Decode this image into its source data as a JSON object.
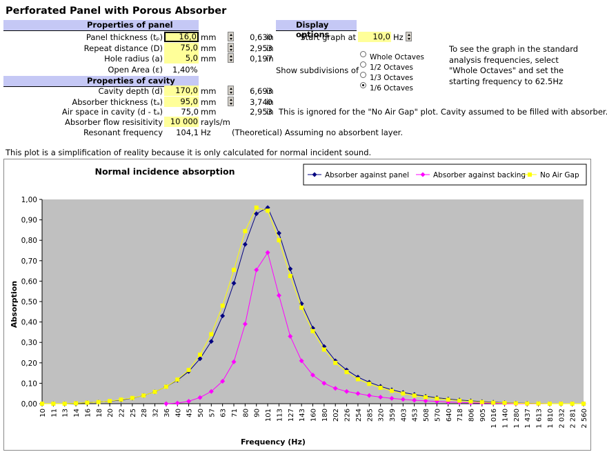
{
  "title": "Perforated Panel with Porous Absorber",
  "panel": {
    "header": "Properties of panel",
    "rows": [
      {
        "label": "Panel thickness (tₚ)",
        "input": "16,0",
        "unit": "mm",
        "converted": "0,630",
        "conv_unit": "in",
        "selected": true
      },
      {
        "label": "Repeat distance (D)",
        "input": "75,0",
        "unit": "mm",
        "converted": "2,953",
        "conv_unit": "in"
      },
      {
        "label": "Hole radius (a)",
        "input": "5,0",
        "unit": "mm",
        "converted": "0,197",
        "conv_unit": "in"
      }
    ],
    "open_area": {
      "label": "Open Area (ε)",
      "value": "1,40%"
    }
  },
  "cavity": {
    "header": "Properties of cavity",
    "rows": [
      {
        "label": "Cavity depth (d)",
        "input": "170,0",
        "unit": "mm",
        "converted": "6,693",
        "conv_unit": "in"
      },
      {
        "label": "Absorber thickness (tₐ)",
        "input": "95,0",
        "unit": "mm",
        "converted": "3,740",
        "conv_unit": "in"
      }
    ],
    "air_space": {
      "label": "Air space in cavity (d - tₐ)",
      "value": "75,0",
      "unit": "mm",
      "converted": "2,953",
      "conv_unit": "in",
      "note": "This is ignored for the \"No Air Gap\" plot.  Cavity assumed to be filled with absorber."
    },
    "flow": {
      "label": "Absorber flow resisitivity",
      "input": "10 000",
      "unit": "rayls/m"
    },
    "resonant": {
      "label": "Resonant frequency",
      "value": "104,1",
      "unit": "Hz",
      "note": "(Theoretical) Assuming no absorbent layer."
    }
  },
  "display": {
    "header": "Display options",
    "start_label": "Start graph at",
    "start_value": "10,0",
    "start_unit": "Hz",
    "subdiv_label": "Show subdivisions of",
    "options": [
      "Whole Octaves",
      "1/2 Octaves",
      "1/3 Octaves",
      "1/6 Octaves"
    ],
    "selected_option": 3,
    "hint": [
      "To see the graph in the standard",
      "analysis frequencies, select",
      "\"Whole Octaves\" and set the",
      "starting frequency to 62.5Hz"
    ]
  },
  "note": "This plot is a simplification of reality because it is only calculated for normal incident sound.",
  "chart_data": {
    "type": "line",
    "title": "Normal incidence absorption",
    "xlabel": "Frequency (Hz)",
    "ylabel": "Absorption",
    "ylim": [
      0,
      1
    ],
    "yticks": [
      "0,00",
      "0,10",
      "0,20",
      "0,30",
      "0,40",
      "0,50",
      "0,60",
      "0,70",
      "0,80",
      "0,90",
      "1,00"
    ],
    "categories": [
      "10",
      "11",
      "13",
      "14",
      "16",
      "18",
      "20",
      "22",
      "25",
      "28",
      "32",
      "36",
      "40",
      "45",
      "50",
      "57",
      "63",
      "71",
      "80",
      "90",
      "101",
      "113",
      "127",
      "143",
      "160",
      "180",
      "202",
      "226",
      "254",
      "285",
      "320",
      "359",
      "403",
      "453",
      "508",
      "570",
      "640",
      "718",
      "806",
      "905",
      "1 016",
      "1 140",
      "1 280",
      "1 437",
      "1 613",
      "1 810",
      "2 032",
      "2 281",
      "2 560"
    ],
    "legend_position": "top-right",
    "plot_bg": "#c0c0c0",
    "series": [
      {
        "name": "Absorber against panel",
        "color": "#000080",
        "marker": "diamond",
        "values": [
          0,
          0,
          0,
          0.002,
          0.005,
          0.008,
          0.012,
          0.018,
          0.027,
          0.04,
          0.058,
          0.083,
          0.115,
          0.158,
          0.22,
          0.305,
          0.43,
          0.59,
          0.78,
          0.93,
          0.96,
          0.835,
          0.66,
          0.49,
          0.37,
          0.28,
          0.21,
          0.165,
          0.13,
          0.105,
          0.085,
          0.068,
          0.055,
          0.045,
          0.036,
          0.029,
          0.023,
          0.018,
          0.014,
          0.01,
          0.007,
          0.005,
          0.003,
          0.002,
          0.001,
          0,
          0,
          0,
          0
        ]
      },
      {
        "name": "Absorber against backing",
        "color": "#ff00ff",
        "marker": "diamond",
        "values": [
          null,
          null,
          null,
          null,
          null,
          null,
          null,
          null,
          null,
          null,
          null,
          0,
          0.003,
          0.012,
          0.03,
          0.06,
          0.11,
          0.205,
          0.39,
          0.655,
          0.74,
          0.53,
          0.33,
          0.21,
          0.14,
          0.1,
          0.075,
          0.06,
          0.05,
          0.04,
          0.032,
          0.026,
          0.021,
          0.017,
          0.014,
          0.011,
          0.008,
          0.006,
          0.004,
          0.003,
          0.002,
          0.001,
          0,
          0,
          0,
          0,
          0,
          0,
          0
        ]
      },
      {
        "name": "No Air Gap",
        "color": "#ffff00",
        "marker": "square",
        "values": [
          0,
          0,
          0,
          0.002,
          0.005,
          0.008,
          0.013,
          0.02,
          0.028,
          0.04,
          0.058,
          0.083,
          0.118,
          0.165,
          0.24,
          0.34,
          0.48,
          0.655,
          0.845,
          0.96,
          0.945,
          0.8,
          0.625,
          0.47,
          0.355,
          0.265,
          0.2,
          0.155,
          0.12,
          0.097,
          0.078,
          0.063,
          0.05,
          0.04,
          0.032,
          0.025,
          0.02,
          0.015,
          0.011,
          0.008,
          0.005,
          0.004,
          0.002,
          0.001,
          0.001,
          0,
          0,
          0,
          0
        ]
      }
    ]
  }
}
